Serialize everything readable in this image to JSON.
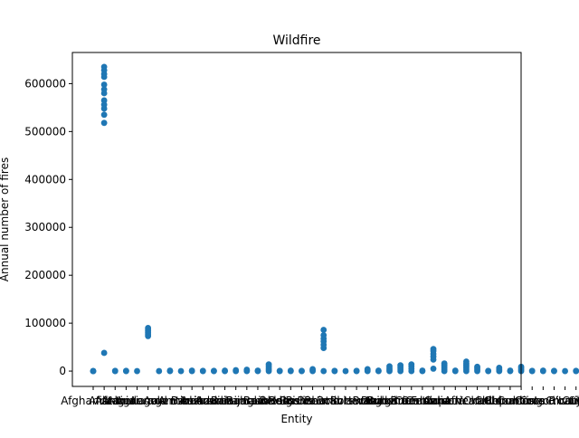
{
  "chart_data": {
    "type": "scatter",
    "title": "Wildfire",
    "xlabel": "Entity",
    "ylabel": "Annual number of fires",
    "ylim": [
      -32000,
      665000
    ],
    "yticks": [
      0,
      100000,
      200000,
      300000,
      400000,
      500000,
      600000
    ],
    "ytick_labels": [
      "0",
      "100000",
      "200000",
      "300000",
      "400000",
      "500000",
      "600000"
    ],
    "grid": false,
    "legend": "none",
    "color": "#1f77b4",
    "categories": [
      "Afghanistan",
      "Africa",
      "Albania",
      "Algeria",
      "Andorra",
      "Angola",
      "Antigua and Barbuda",
      "Argentina",
      "Armenia",
      "Asia",
      "Australia",
      "Austria",
      "Azerbaijan",
      "Bahamas",
      "Bahrain",
      "Bangladesh",
      "Barbados",
      "Belarus",
      "Belgium",
      "Belize",
      "Benin",
      "Bhutan",
      "Bolivia",
      "Bosnia and Herzegovina",
      "Botswana",
      "Brazil",
      "Brunei",
      "Bulgaria",
      "Burkina Faso",
      "Burundi",
      "Cambodia",
      "Cameroon",
      "Canada",
      "Cape Verde",
      "Central African Republic",
      "Chad",
      "Chile",
      "China",
      "Colombia",
      "Comoros",
      "Congo",
      "Costa Rica",
      "Cote d'Ivoire",
      "Croatia",
      "Cuba",
      "Cyprus",
      "Czechia"
    ],
    "points": [
      {
        "category": "Afghanistan",
        "y": [
          0,
          0,
          0
        ]
      },
      {
        "category": "Africa",
        "y": [
          635000,
          628000,
          620000,
          614000,
          598000,
          588000,
          580000,
          565000,
          556000,
          548000,
          535000,
          518000,
          38000
        ]
      },
      {
        "category": "Albania",
        "y": [
          0,
          500
        ]
      },
      {
        "category": "Algeria",
        "y": [
          0,
          500
        ]
      },
      {
        "category": "Andorra",
        "y": [
          0
        ]
      },
      {
        "category": "Angola",
        "y": [
          90000,
          87000,
          84000,
          80000,
          76000,
          73000
        ]
      },
      {
        "category": "Antigua and Barbuda",
        "y": [
          0
        ]
      },
      {
        "category": "Argentina",
        "y": [
          0,
          1000
        ]
      },
      {
        "category": "Armenia",
        "y": [
          0
        ]
      },
      {
        "category": "Asia",
        "y": [
          0,
          1000
        ]
      },
      {
        "category": "Australia",
        "y": [
          0,
          500
        ]
      },
      {
        "category": "Austria",
        "y": [
          0,
          500
        ]
      },
      {
        "category": "Azerbaijan",
        "y": [
          0,
          1000
        ]
      },
      {
        "category": "Bahamas",
        "y": [
          0,
          2000
        ]
      },
      {
        "category": "Bahrain",
        "y": [
          0,
          1000,
          3000
        ]
      },
      {
        "category": "Bangladesh",
        "y": [
          0,
          1000
        ]
      },
      {
        "category": "Barbados",
        "y": [
          0,
          3000,
          6000,
          10000,
          14000
        ]
      },
      {
        "category": "Belarus",
        "y": [
          0,
          500
        ]
      },
      {
        "category": "Belgium",
        "y": [
          0,
          1000
        ]
      },
      {
        "category": "Belize",
        "y": [
          0,
          500
        ]
      },
      {
        "category": "Benin",
        "y": [
          0,
          2000,
          4000
        ]
      },
      {
        "category": "Bhutan",
        "y": [
          86000,
          75000,
          68000,
          62000,
          55000,
          48000,
          0
        ]
      },
      {
        "category": "Bolivia",
        "y": [
          0,
          500
        ]
      },
      {
        "category": "Bosnia and Herzegovina",
        "y": [
          0
        ]
      },
      {
        "category": "Botswana",
        "y": [
          0,
          500
        ]
      },
      {
        "category": "Brazil",
        "y": [
          0,
          2000,
          4000
        ]
      },
      {
        "category": "Brunei",
        "y": [
          0,
          1000
        ]
      },
      {
        "category": "Bulgaria",
        "y": [
          0,
          3000,
          6000,
          10000
        ]
      },
      {
        "category": "Burkina Faso",
        "y": [
          0,
          4000,
          8000,
          12000
        ]
      },
      {
        "category": "Burundi",
        "y": [
          0,
          5000,
          10000,
          14000
        ]
      },
      {
        "category": "Cambodia",
        "y": [
          0,
          1000
        ]
      },
      {
        "category": "Cameroon",
        "y": [
          5000,
          24000,
          30000,
          36000,
          42000,
          46000
        ]
      },
      {
        "category": "Canada",
        "y": [
          0,
          4000,
          8000,
          12000,
          16000
        ]
      },
      {
        "category": "Cape Verde",
        "y": [
          0,
          1000
        ]
      },
      {
        "category": "Central African Republic",
        "y": [
          0,
          4000,
          8000,
          12000,
          16000,
          20000
        ]
      },
      {
        "category": "Chad",
        "y": [
          0,
          3000,
          6000,
          9000
        ]
      },
      {
        "category": "Chile",
        "y": [
          0,
          500
        ]
      },
      {
        "category": "China",
        "y": [
          0,
          2000,
          4000,
          7000
        ]
      },
      {
        "category": "Colombia",
        "y": [
          0,
          1000
        ]
      },
      {
        "category": "Comoros",
        "y": [
          0,
          3000,
          6000,
          9000
        ]
      },
      {
        "category": "Congo",
        "y": [
          0,
          500
        ]
      },
      {
        "category": "Costa Rica",
        "y": [
          0,
          1000
        ]
      },
      {
        "category": "Cote d'Ivoire",
        "y": [
          0,
          500
        ]
      },
      {
        "category": "Croatia",
        "y": [
          0
        ]
      },
      {
        "category": "Cuba",
        "y": [
          0,
          500
        ]
      },
      {
        "category": "Cyprus",
        "y": [
          0
        ]
      },
      {
        "category": "Czechia",
        "y": [
          0,
          500
        ]
      }
    ]
  }
}
